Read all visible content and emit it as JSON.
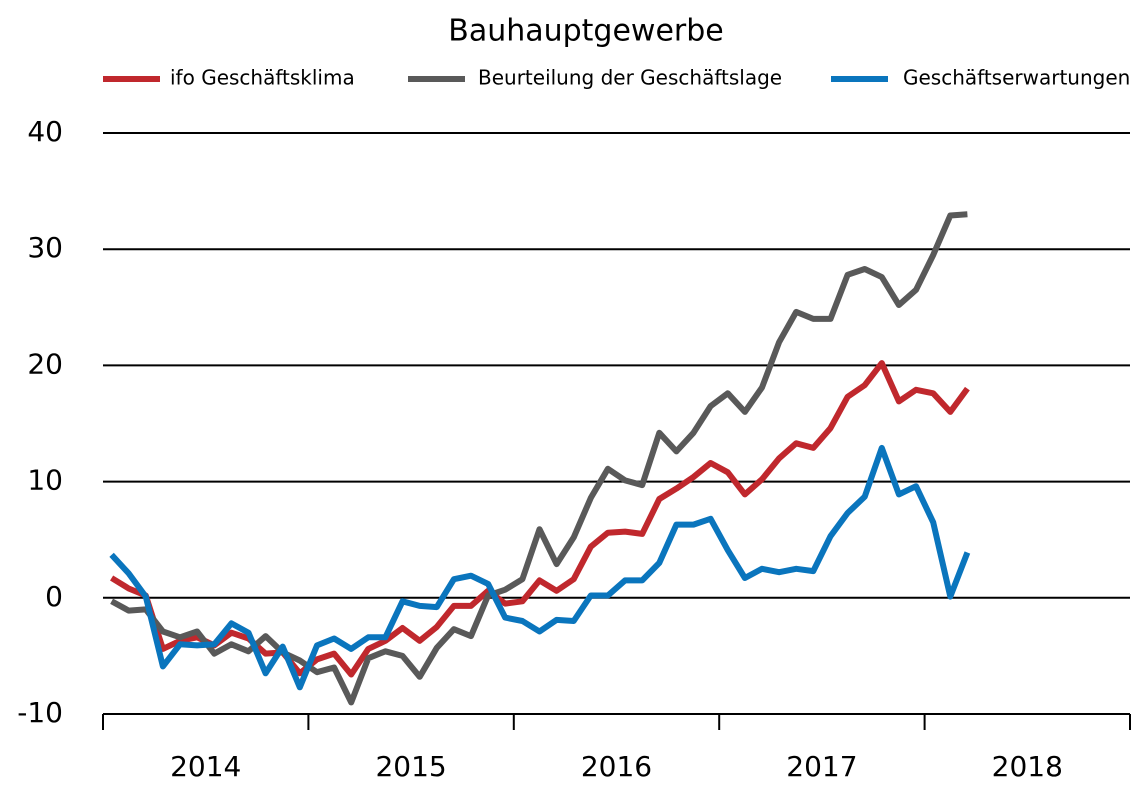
{
  "chart_data": {
    "type": "line",
    "title": "Bauhauptgewerbe",
    "categories": [
      null,
      null,
      null,
      null,
      null,
      null,
      null,
      null,
      null,
      null,
      null,
      null,
      null,
      null,
      null,
      null,
      null,
      null,
      null,
      null,
      null,
      null,
      null,
      null,
      null,
      null,
      null,
      null,
      null,
      null,
      null,
      null,
      null,
      null,
      null,
      null,
      null,
      null,
      null,
      null,
      null,
      null,
      null,
      null,
      null,
      null,
      null,
      null,
      null,
      null,
      null
    ],
    "year_labels": [
      "2014",
      "2015",
      "2016",
      "2017",
      "2018"
    ],
    "ylim": [
      -10,
      40
    ],
    "yticks": [
      -10,
      0,
      10,
      20,
      30,
      40
    ],
    "grid": true,
    "series": [
      {
        "name": "ifo Geschäftsklima",
        "color": "#c0282d",
        "values": [
          1.7,
          0.8,
          0.2,
          -4.4,
          -3.7,
          -3.4,
          -4.1,
          -3.0,
          -3.5,
          -4.8,
          -4.7,
          -6.5,
          -5.3,
          -4.8,
          -6.6,
          -4.4,
          -3.7,
          -2.6,
          -3.7,
          -2.5,
          -0.7,
          -0.7,
          0.6,
          -0.5,
          -0.3,
          1.5,
          0.6,
          1.6,
          4.4,
          5.6,
          5.7,
          5.5,
          8.5,
          9.4,
          10.4,
          11.6,
          10.8,
          8.9,
          10.2,
          12.0,
          13.3,
          12.9,
          14.6,
          17.3,
          18.3,
          20.2,
          16.9,
          17.9,
          17.6,
          16.0,
          18.0
        ]
      },
      {
        "name": "Beurteilung der Geschäftslage",
        "color": "#595959",
        "values": [
          -0.3,
          -1.1,
          -1.0,
          -2.9,
          -3.4,
          -2.9,
          -4.8,
          -4.0,
          -4.6,
          -3.3,
          -4.7,
          -5.4,
          -6.4,
          -6.0,
          -9.0,
          -5.2,
          -4.6,
          -5.0,
          -6.8,
          -4.3,
          -2.7,
          -3.3,
          0.2,
          0.7,
          1.6,
          5.9,
          2.9,
          5.2,
          8.6,
          11.1,
          10.1,
          9.7,
          14.2,
          12.6,
          14.2,
          16.5,
          17.6,
          16.0,
          18.1,
          22.0,
          24.6,
          24.0,
          24.0,
          27.8,
          28.3,
          27.6,
          25.2,
          26.5,
          29.5,
          32.9,
          33.0
        ]
      },
      {
        "name": "Geschäftserwartungen",
        "color": "#0a75bd",
        "values": [
          3.7,
          2.1,
          0.1,
          -5.9,
          -4.0,
          -4.1,
          -4.0,
          -2.2,
          -3.0,
          -6.5,
          -4.2,
          -7.7,
          -4.1,
          -3.5,
          -4.4,
          -3.4,
          -3.4,
          -0.3,
          -0.7,
          -0.8,
          1.6,
          1.9,
          1.2,
          -1.7,
          -2.0,
          -2.9,
          -1.9,
          -2.0,
          0.2,
          0.2,
          1.5,
          1.5,
          3.0,
          6.3,
          6.3,
          6.8,
          4.1,
          1.7,
          2.5,
          2.2,
          2.5,
          2.3,
          5.3,
          7.3,
          8.7,
          12.9,
          8.9,
          9.6,
          6.5,
          0.1,
          3.9
        ]
      }
    ]
  }
}
